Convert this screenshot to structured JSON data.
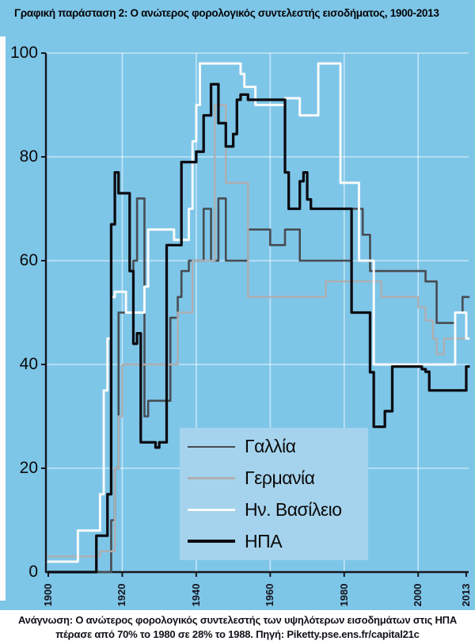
{
  "title": "Γραφική παράσταση 2: Ο ανώτερος φορολογικός συντελεστής εισοδήματος, 1900-2013",
  "caption": {
    "line1": "Ανάγνωση: Ο ανώτερος φορολογικός συντελεστής των υψηλότερων εισοδημάτων στις ΗΠΑ",
    "line2": "πέρασε από 70% το 1980 σε 28% το 1988. Πηγή: Piketty.pse.ens.fr/capital21c"
  },
  "colors": {
    "background": "#7ec6e8",
    "legend_background": "#a5d3ed",
    "axis": "#16161e",
    "grid": "#ffffff",
    "grid_opacity": 0.55,
    "caption_background": "#ffffff",
    "text": "#0a0a0a"
  },
  "chart_data": {
    "type": "line",
    "title": "Γραφική παράσταση 2: Ο ανώτερος φορολογικός συντελεστής εισοδήματος, 1900-2013",
    "xlabel": "",
    "ylabel": "",
    "unit": "%",
    "grid": true,
    "legend_position": "bottom-center",
    "x_axis": {
      "range": [
        1900,
        2013
      ],
      "ticks": [
        1900,
        1920,
        1940,
        1960,
        1980,
        2000,
        2013
      ]
    },
    "y_axis": {
      "range": [
        0,
        100
      ],
      "ticks": [
        0,
        20,
        40,
        60,
        80,
        100
      ]
    },
    "series": [
      {
        "name": "Γαλλία",
        "color": "#474b52",
        "width": 2.6,
        "points": [
          [
            1900,
            0
          ],
          [
            1917,
            10
          ],
          [
            1918,
            20
          ],
          [
            1919,
            50
          ],
          [
            1923,
            60
          ],
          [
            1924,
            72
          ],
          [
            1926,
            30
          ],
          [
            1927,
            33
          ],
          [
            1933,
            49
          ],
          [
            1935,
            53
          ],
          [
            1936,
            58
          ],
          [
            1938,
            60
          ],
          [
            1942,
            70
          ],
          [
            1944,
            60
          ],
          [
            1946,
            72
          ],
          [
            1948,
            60
          ],
          [
            1954,
            66
          ],
          [
            1960,
            63
          ],
          [
            1964,
            66
          ],
          [
            1968,
            60
          ],
          [
            1982,
            70
          ],
          [
            1985,
            65
          ],
          [
            1987,
            58
          ],
          [
            2002,
            56
          ],
          [
            2005,
            48
          ],
          [
            2010,
            50
          ],
          [
            2012,
            53
          ]
        ]
      },
      {
        "name": "Γερμανία",
        "color": "#aeaeb0",
        "width": 2.4,
        "points": [
          [
            1900,
            3
          ],
          [
            1914,
            4
          ],
          [
            1918,
            20
          ],
          [
            1919,
            30
          ],
          [
            1920,
            40
          ],
          [
            1935,
            50
          ],
          [
            1939,
            60
          ],
          [
            1945,
            90
          ],
          [
            1948,
            75
          ],
          [
            1954,
            53
          ],
          [
            1975,
            56
          ],
          [
            1990,
            53
          ],
          [
            2000,
            51
          ],
          [
            2002,
            48.5
          ],
          [
            2004,
            45
          ],
          [
            2005,
            42
          ],
          [
            2007,
            45
          ]
        ]
      },
      {
        "name": "Ην. Βασίλειο",
        "color": "#f8fafb",
        "width": 3.0,
        "points": [
          [
            1900,
            2
          ],
          [
            1908,
            8
          ],
          [
            1914,
            15
          ],
          [
            1915,
            35
          ],
          [
            1916,
            45
          ],
          [
            1917,
            53
          ],
          [
            1918,
            54
          ],
          [
            1921,
            50
          ],
          [
            1926,
            55
          ],
          [
            1927,
            66
          ],
          [
            1934,
            64
          ],
          [
            1938,
            70
          ],
          [
            1939,
            83
          ],
          [
            1940,
            90
          ],
          [
            1941,
            98
          ],
          [
            1952,
            96
          ],
          [
            1953,
            93.5
          ],
          [
            1956,
            90
          ],
          [
            1964,
            91.3
          ],
          [
            1968,
            88
          ],
          [
            1973,
            98
          ],
          [
            1979,
            75
          ],
          [
            1984,
            60
          ],
          [
            1988,
            40
          ],
          [
            2010,
            50
          ],
          [
            2013,
            45
          ]
        ]
      },
      {
        "name": "ΗΠΑ",
        "color": "#0c0c12",
        "width": 3.3,
        "points": [
          [
            1900,
            0
          ],
          [
            1913,
            7
          ],
          [
            1916,
            15
          ],
          [
            1917,
            67
          ],
          [
            1918,
            77
          ],
          [
            1919,
            73
          ],
          [
            1922,
            58
          ],
          [
            1923,
            44
          ],
          [
            1924,
            46
          ],
          [
            1925,
            25
          ],
          [
            1929,
            24
          ],
          [
            1930,
            25
          ],
          [
            1932,
            63
          ],
          [
            1936,
            79
          ],
          [
            1940,
            81
          ],
          [
            1942,
            88
          ],
          [
            1944,
            94
          ],
          [
            1946,
            86.5
          ],
          [
            1948,
            82
          ],
          [
            1950,
            84.4
          ],
          [
            1951,
            91
          ],
          [
            1952,
            92
          ],
          [
            1954,
            91
          ],
          [
            1964,
            77
          ],
          [
            1965,
            70
          ],
          [
            1968,
            75.3
          ],
          [
            1969,
            77
          ],
          [
            1970,
            71.8
          ],
          [
            1971,
            70
          ],
          [
            1982,
            50
          ],
          [
            1987,
            38.5
          ],
          [
            1988,
            28
          ],
          [
            1991,
            31
          ],
          [
            1993,
            39.6
          ],
          [
            2001,
            39.1
          ],
          [
            2002,
            38.6
          ],
          [
            2003,
            35
          ],
          [
            2013,
            39.6
          ]
        ]
      }
    ]
  }
}
